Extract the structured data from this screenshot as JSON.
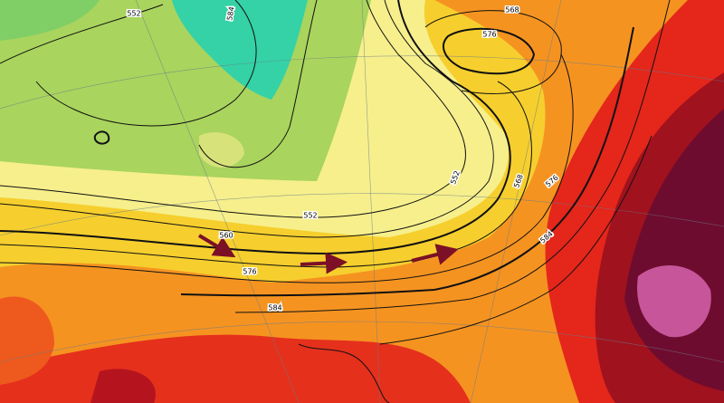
{
  "contour_labels": [
    "552",
    "584",
    "568",
    "576",
    "552",
    "560",
    "576",
    "584",
    "552",
    "568",
    "576",
    "584"
  ]
}
